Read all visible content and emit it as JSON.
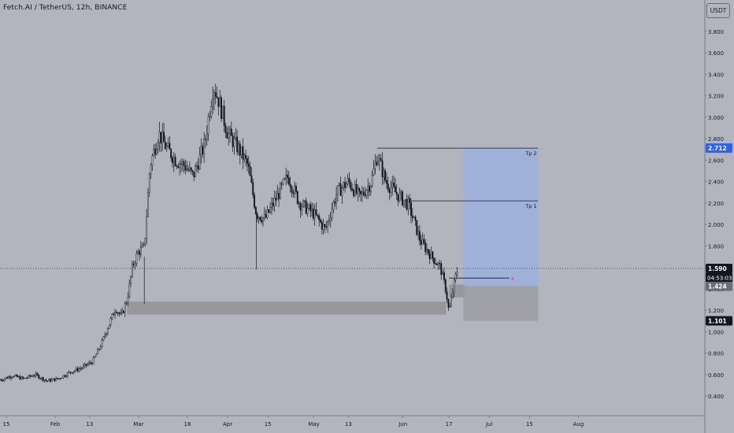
{
  "header": {
    "title": "Fetch.AI / TetherUS, 12h, BINANCE",
    "currency_button": "USDT"
  },
  "chart_data": {
    "type": "candlestick",
    "symbol": "Fetch.AI / TetherUS",
    "interval": "12h",
    "exchange": "BINANCE",
    "y_ticks": [
      "0.400",
      "0.600",
      "0.800",
      "1.000",
      "1.200",
      "1.400",
      "1.600",
      "1.800",
      "2.000",
      "2.200",
      "2.400",
      "2.600",
      "2.800",
      "3.000",
      "3.200",
      "3.400",
      "3.600",
      "3.800"
    ],
    "x_ticks": [
      {
        "label": "15",
        "date": "2024-01-15"
      },
      {
        "label": "Feb",
        "date": "2024-02-01"
      },
      {
        "label": "13",
        "date": "2024-02-13"
      },
      {
        "label": "Mar",
        "date": "2024-03-01"
      },
      {
        "label": "18",
        "date": "2024-03-18"
      },
      {
        "label": "Apr",
        "date": "2024-04-01"
      },
      {
        "label": "15",
        "date": "2024-04-15"
      },
      {
        "label": "May",
        "date": "2024-05-01"
      },
      {
        "label": "13",
        "date": "2024-05-13"
      },
      {
        "label": "Jun",
        "date": "2024-06-01"
      },
      {
        "label": "17",
        "date": "2024-06-17"
      },
      {
        "label": "Jul",
        "date": "2024-07-01"
      },
      {
        "label": "15",
        "date": "2024-07-15"
      },
      {
        "label": "Aug",
        "date": "2024-08-01"
      }
    ],
    "price_path": [
      [
        "2024-01-01",
        0.68
      ],
      [
        "2024-01-05",
        0.66
      ],
      [
        "2024-01-10",
        0.6
      ],
      [
        "2024-01-13",
        0.55
      ],
      [
        "2024-01-17",
        0.59
      ],
      [
        "2024-01-21",
        0.56
      ],
      [
        "2024-01-25",
        0.6
      ],
      [
        "2024-01-29",
        0.54
      ],
      [
        "2024-02-02",
        0.56
      ],
      [
        "2024-02-06",
        0.62
      ],
      [
        "2024-02-10",
        0.66
      ],
      [
        "2024-02-14",
        0.72
      ],
      [
        "2024-02-17",
        0.88
      ],
      [
        "2024-02-19",
        1.02
      ],
      [
        "2024-02-22",
        1.22
      ],
      [
        "2024-02-24",
        1.14
      ],
      [
        "2024-02-26",
        1.3
      ],
      [
        "2024-02-28",
        1.62
      ],
      [
        "2024-03-01",
        1.75
      ],
      [
        "2024-03-03",
        1.78
      ],
      [
        "2024-03-05",
        2.55
      ],
      [
        "2024-03-08",
        2.85
      ],
      [
        "2024-03-11",
        2.7
      ],
      [
        "2024-03-14",
        2.6
      ],
      [
        "2024-03-17",
        2.55
      ],
      [
        "2024-03-20",
        2.45
      ],
      [
        "2024-03-24",
        2.75
      ],
      [
        "2024-03-27",
        3.3
      ],
      [
        "2024-03-29",
        3.15
      ],
      [
        "2024-04-01",
        2.85
      ],
      [
        "2024-04-05",
        2.7
      ],
      [
        "2024-04-08",
        2.55
      ],
      [
        "2024-04-11",
        2.1
      ],
      [
        "2024-04-14",
        2.05
      ],
      [
        "2024-04-18",
        2.25
      ],
      [
        "2024-04-22",
        2.45
      ],
      [
        "2024-04-26",
        2.2
      ],
      [
        "2024-05-01",
        2.1
      ],
      [
        "2024-05-05",
        1.95
      ],
      [
        "2024-05-09",
        2.3
      ],
      [
        "2024-05-13",
        2.4
      ],
      [
        "2024-05-17",
        2.25
      ],
      [
        "2024-05-21",
        2.4
      ],
      [
        "2024-05-23",
        2.65
      ],
      [
        "2024-05-26",
        2.4
      ],
      [
        "2024-05-30",
        2.28
      ],
      [
        "2024-06-03",
        2.18
      ],
      [
        "2024-06-07",
        1.85
      ],
      [
        "2024-06-11",
        1.7
      ],
      [
        "2024-06-14",
        1.6
      ],
      [
        "2024-06-16",
        1.38
      ],
      [
        "2024-06-17",
        1.18
      ],
      [
        "2024-06-19",
        1.48
      ],
      [
        "2024-06-20",
        1.59
      ]
    ],
    "horizontal_lines": [
      {
        "label": "Tp 2",
        "price": 2.712,
        "from": "2024-05-23",
        "to": "2024-07-18"
      },
      {
        "label": "Tp 1",
        "price": 2.22,
        "from": "2024-06-03",
        "to": "2024-07-18"
      },
      {
        "label": "",
        "price": 1.5,
        "from": "2024-06-17",
        "to": "2024-07-08"
      }
    ],
    "entry_marker": "x",
    "vertical_wicks": [
      {
        "date": "2024-03-03",
        "low": 1.26,
        "high": 1.7
      },
      {
        "date": "2024-04-11",
        "low": 1.58,
        "high": 2.1
      }
    ],
    "demand_zones": [
      {
        "from": "2024-02-26",
        "to": "2024-06-16",
        "low": 1.16,
        "high": 1.28
      },
      {
        "from": "2024-06-17",
        "to": "2024-06-23",
        "low": 1.32,
        "high": 1.44
      }
    ],
    "position_tool": {
      "entry": 1.424,
      "target": 2.712,
      "stop": 1.101,
      "from": "2024-06-22",
      "to": "2024-07-18"
    },
    "current_price": "1.590",
    "countdown": "04:53:03",
    "axis_labels": [
      {
        "text": "2.712",
        "price": 2.712,
        "kind": "target"
      },
      {
        "text": "1.590",
        "price": 1.59,
        "kind": "current"
      },
      {
        "text": "1.424",
        "price": 1.424,
        "kind": "entry"
      },
      {
        "text": "1.101",
        "price": 1.101,
        "kind": "stop"
      }
    ]
  },
  "colors": {
    "background": "#b2b5be",
    "candle": "#131722",
    "target_zone": "#9bb0dd",
    "stop_zone": "#9c9ca3",
    "demand_zone": "#939398",
    "target_label": "#2962ff",
    "entry_marker": "#f23645"
  }
}
